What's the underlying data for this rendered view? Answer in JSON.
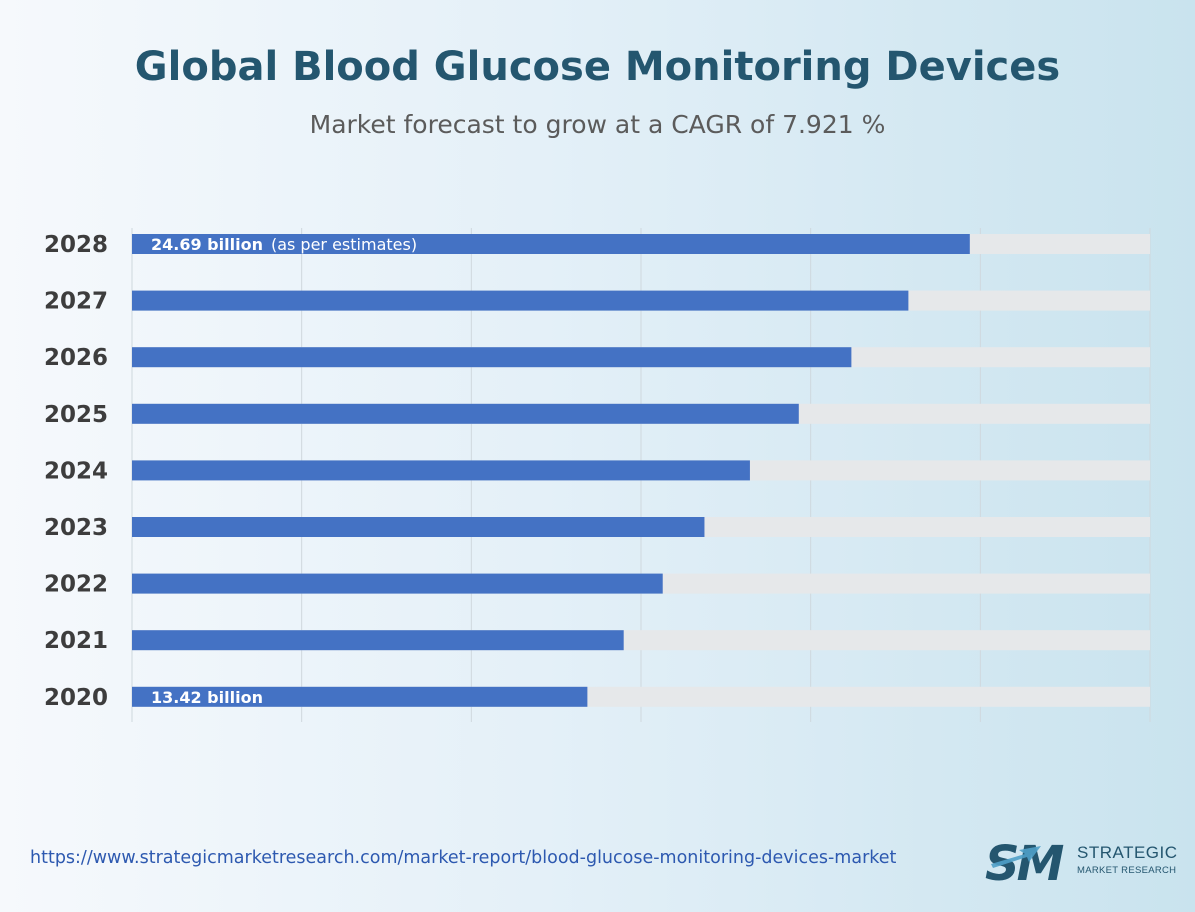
{
  "header": {
    "title": "Global Blood Glucose Monitoring Devices",
    "subtitle": "Market forecast to grow at a CAGR of 7.921 %"
  },
  "chart_data": {
    "type": "bar",
    "orientation": "horizontal",
    "unit": "billion",
    "categories": [
      "2028",
      "2027",
      "2026",
      "2025",
      "2024",
      "2023",
      "2022",
      "2021",
      "2020"
    ],
    "values": [
      24.69,
      22.88,
      21.2,
      19.65,
      18.21,
      16.87,
      15.64,
      14.49,
      13.42
    ],
    "data_labels": [
      {
        "category": "2028",
        "text": "24.69 billion",
        "note": "(as per estimates)"
      },
      {
        "category": "2020",
        "text": "13.42 billion"
      }
    ],
    "xlim": [
      0,
      30
    ],
    "grid": true,
    "colors": {
      "bar": "#4472c4",
      "track": "#e6e8ea",
      "grid": "#cfd8de"
    }
  },
  "footer": {
    "source_url": "https://www.strategicmarketresearch.com/market-report/blood-glucose-monitoring-devices-market",
    "logo": {
      "mark": "SM",
      "line1": "STRATEGIC",
      "line2": "MARKET RESEARCH"
    }
  }
}
